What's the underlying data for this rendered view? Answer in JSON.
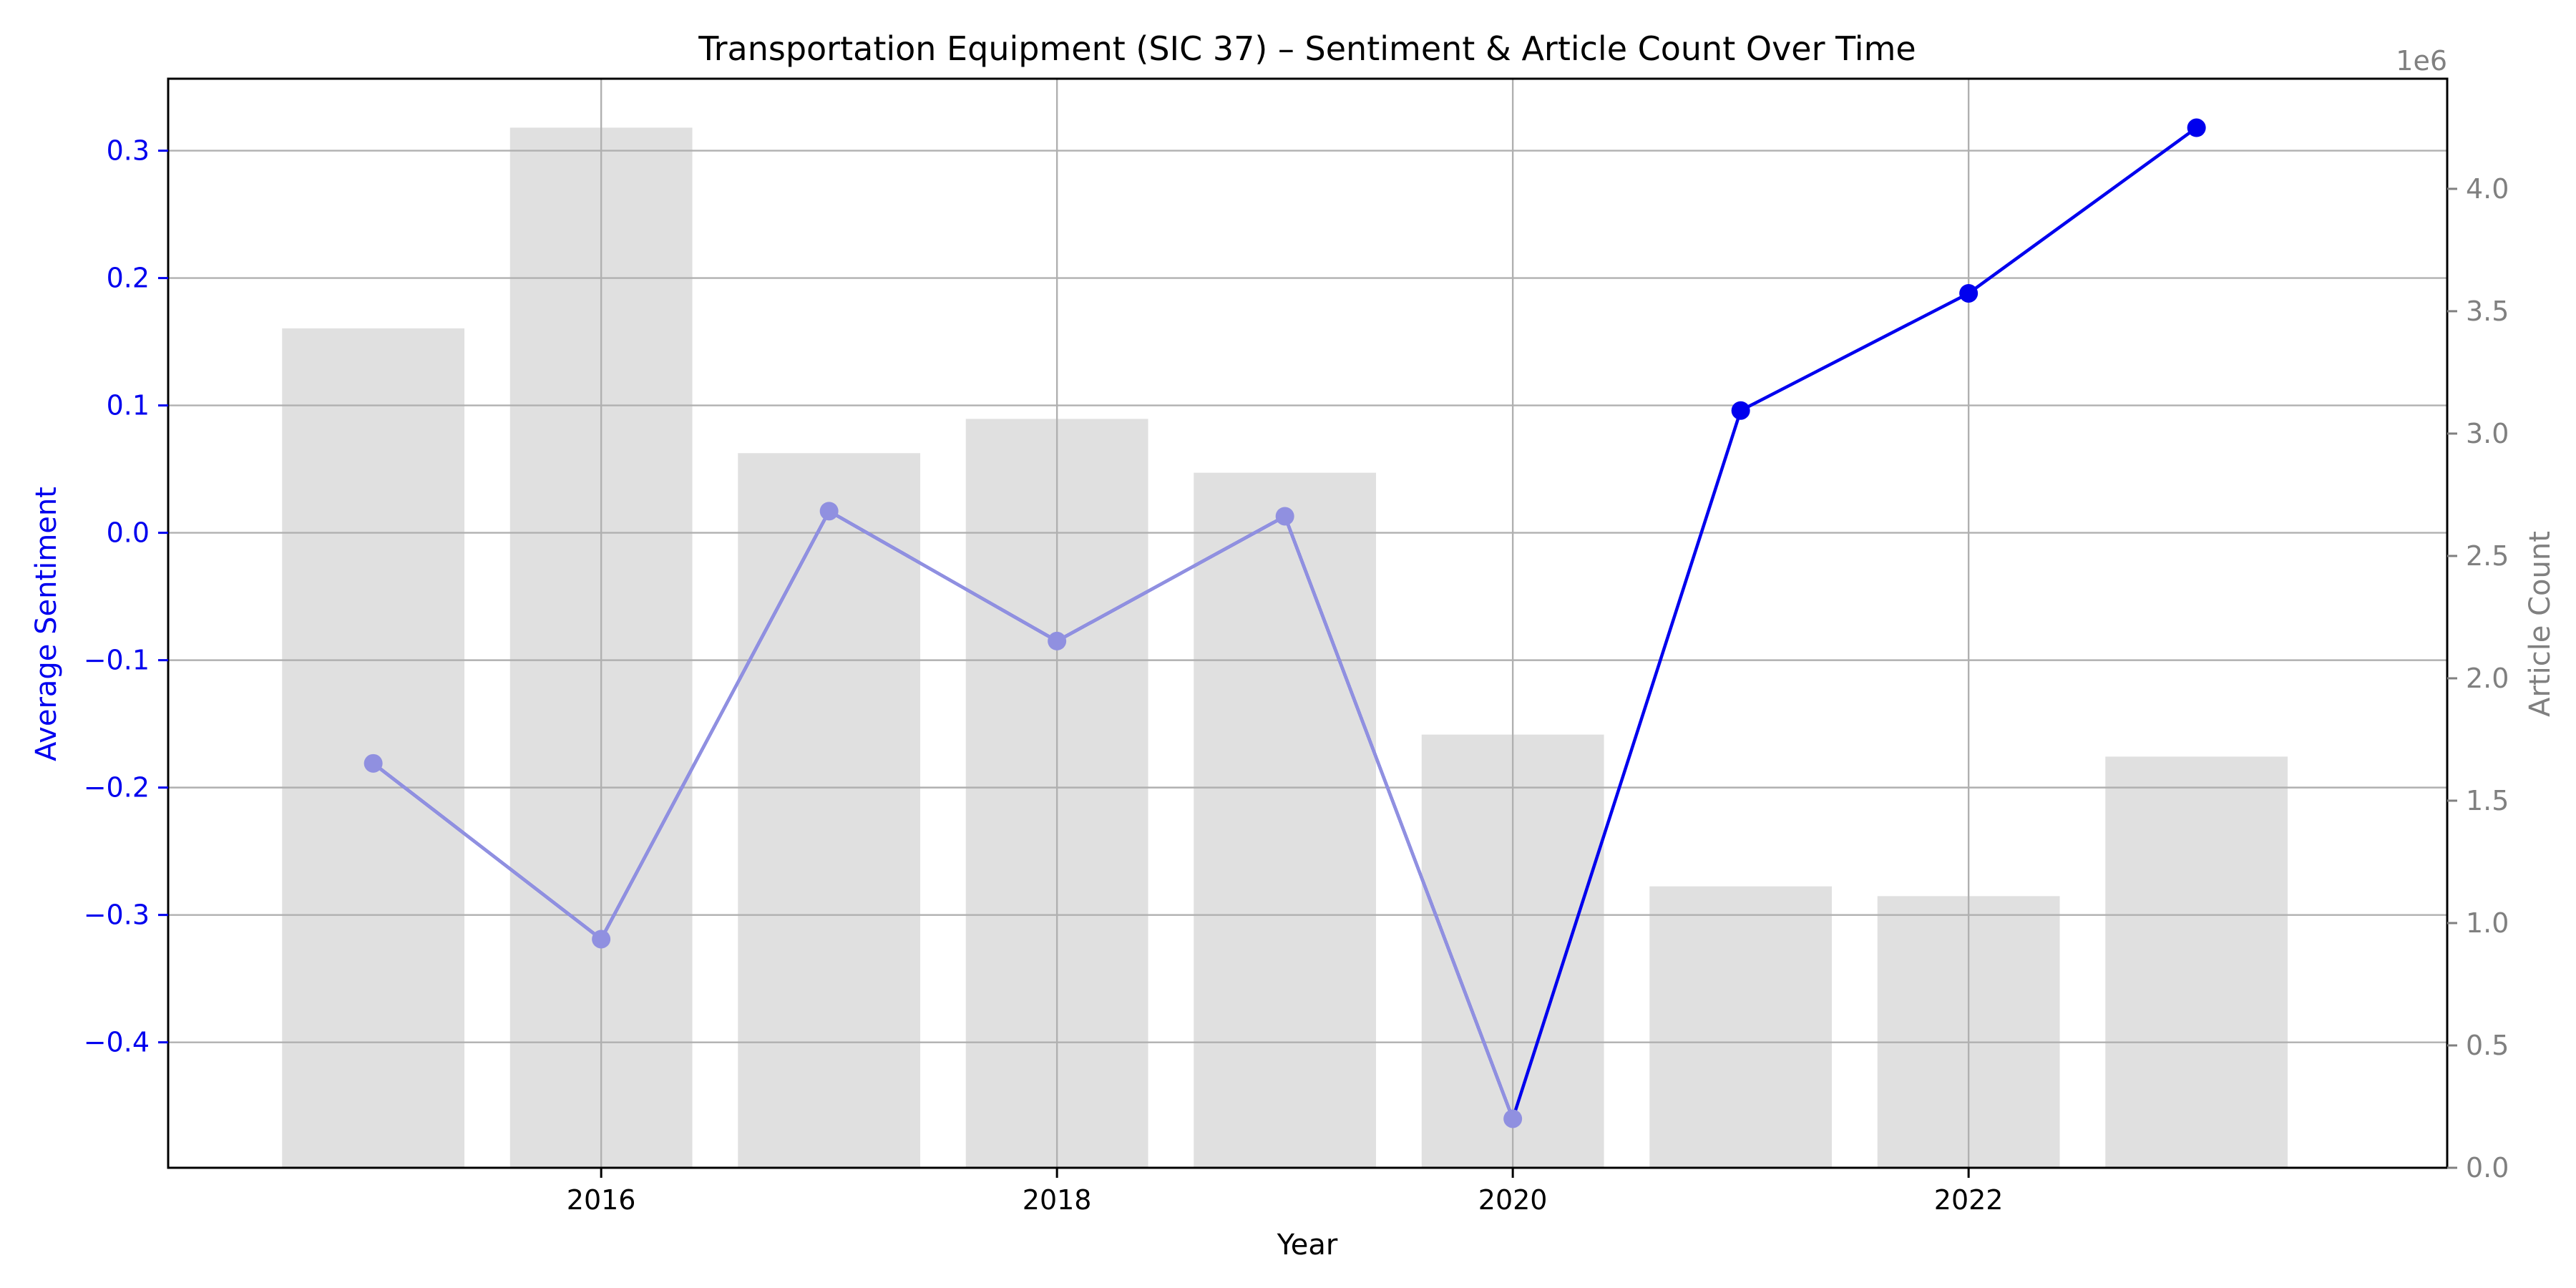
{
  "chart_data": {
    "type": "bar+line",
    "title": "Transportation Equipment (SIC 37) – Sentiment & Article Count Over Time",
    "xlabel": "Year",
    "ylabel_left": "Average Sentiment",
    "ylabel_right": "Article Count",
    "right_axis_offset_text": "1e6",
    "x": [
      2015,
      2016,
      2017,
      2018,
      2019,
      2020,
      2021,
      2022,
      2023
    ],
    "x_ticks": [
      2016,
      2018,
      2020,
      2022
    ],
    "xlim": [
      2014.1,
      2024.1
    ],
    "bars": {
      "name": "Article Count",
      "axis": "right",
      "color": "#e0e0e0",
      "values": [
        3430000,
        4250000,
        2920000,
        3060000,
        2840000,
        1770000,
        1150000,
        1110000,
        1680000
      ]
    },
    "line": {
      "name": "Average Sentiment",
      "axis": "left",
      "color": "#0000ee",
      "faded_color": "#9090e0",
      "values": [
        -0.181,
        -0.319,
        0.017,
        -0.085,
        0.013,
        -0.46,
        0.096,
        0.188,
        0.318
      ],
      "faded_points": [
        true,
        true,
        true,
        true,
        true,
        true,
        false,
        false,
        false
      ]
    },
    "left_axis": {
      "ylim": [
        -0.4985,
        0.3565
      ],
      "ticks": [
        0.3,
        0.2,
        0.1,
        0.0,
        -0.1,
        -0.2,
        -0.3,
        -0.4
      ],
      "tick_labels": [
        "0.3",
        "0.2",
        "0.1",
        "0.0",
        "−0.1",
        "−0.2",
        "−0.3",
        "−0.4"
      ],
      "color": "#0000ee"
    },
    "right_axis": {
      "ylim": [
        0,
        4450000
      ],
      "ticks": [
        0,
        500000,
        1000000,
        1500000,
        2000000,
        2500000,
        3000000,
        3500000,
        4000000
      ],
      "tick_labels": [
        "0.0",
        "0.5",
        "1.0",
        "1.5",
        "2.0",
        "2.5",
        "3.0",
        "3.5",
        "4.0"
      ],
      "color": "#808080"
    },
    "grid": true
  }
}
